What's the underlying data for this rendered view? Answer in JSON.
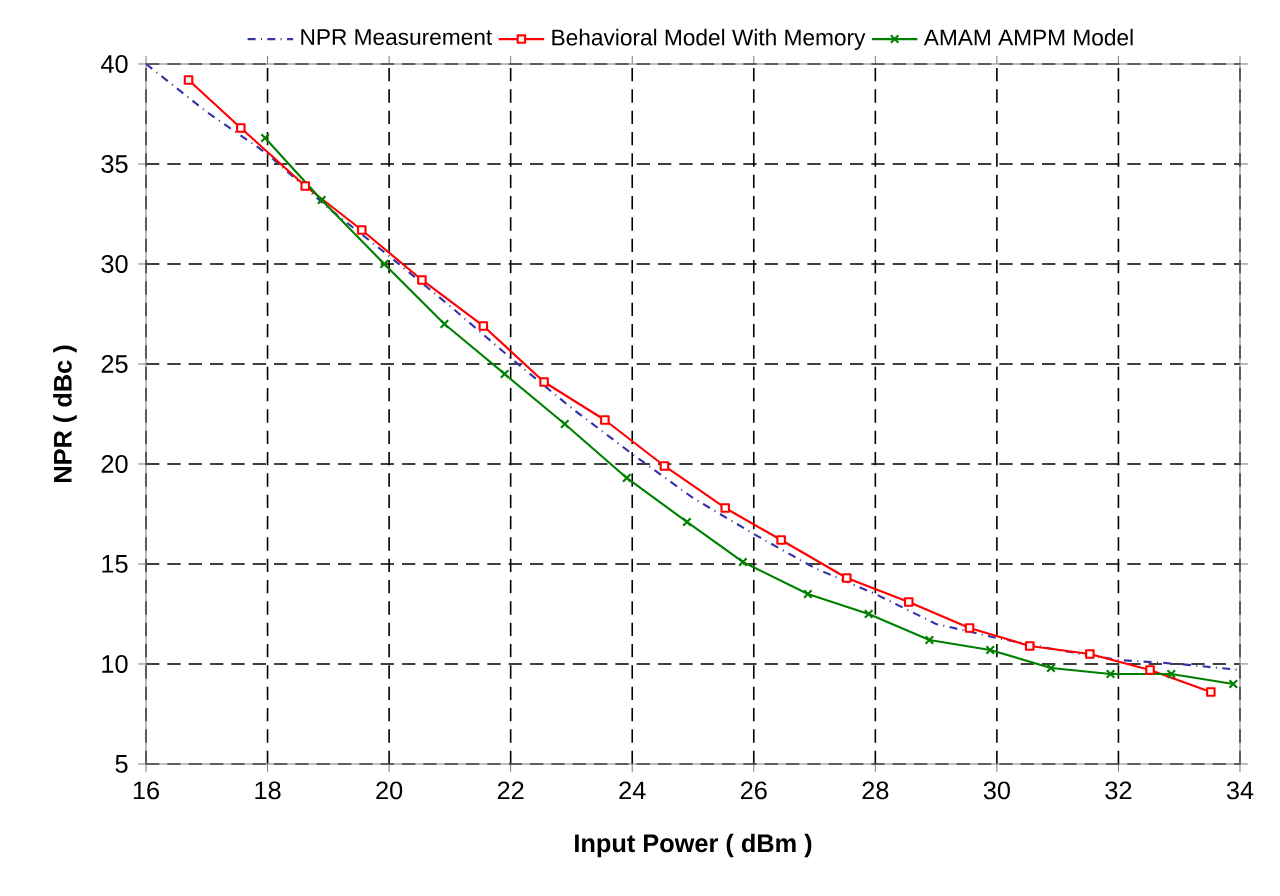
{
  "chart_data": {
    "type": "line",
    "xlabel": "Input Power ( dBm )",
    "ylabel": "NPR  ( dBc )",
    "xlim": [
      16,
      34
    ],
    "xticks": [
      16,
      18,
      20,
      22,
      24,
      26,
      28,
      30,
      32,
      34
    ],
    "ylim": [
      5,
      40
    ],
    "yticks": [
      5,
      10,
      15,
      20,
      25,
      30,
      35,
      40
    ],
    "grid": true,
    "legend": "top",
    "series": [
      {
        "name": "NPR Measurement",
        "color": "#3333aa",
        "line_style": "dashdot",
        "marker": "none",
        "x": [
          16,
          17,
          18,
          19,
          20,
          21,
          22,
          23,
          24,
          25,
          26,
          27,
          28,
          29,
          30,
          31,
          32,
          33,
          34
        ],
        "values": [
          40,
          37.6,
          35.5,
          32.8,
          30.4,
          27.9,
          25.3,
          22.8,
          20.5,
          18.3,
          16.5,
          14.8,
          13.5,
          12,
          11.3,
          10.7,
          10.2,
          10,
          9.7
        ]
      },
      {
        "name": "Behavioral Model With Memory",
        "color": "#ff0000",
        "line_style": "solid",
        "marker": "square",
        "x": [
          16.7,
          17.56,
          18.62,
          19.55,
          20.54,
          21.55,
          22.55,
          23.55,
          24.53,
          25.53,
          26.45,
          27.53,
          28.55,
          29.55,
          30.54,
          31.53,
          32.52,
          33.52
        ],
        "values": [
          39.2,
          36.8,
          33.9,
          31.7,
          29.2,
          26.9,
          24.1,
          22.2,
          19.9,
          17.8,
          16.2,
          14.3,
          13.1,
          11.8,
          10.9,
          10.5,
          9.7,
          8.6
        ]
      },
      {
        "name": "AMAM AMPM Model",
        "color": "#008000",
        "line_style": "solid",
        "marker": "cross",
        "x": [
          17.96,
          18.89,
          19.92,
          20.91,
          21.9,
          22.89,
          23.91,
          24.9,
          25.82,
          26.89,
          27.89,
          28.89,
          29.89,
          30.89,
          31.87,
          32.87,
          33.89
        ],
        "values": [
          36.3,
          33.2,
          30,
          27,
          24.5,
          22,
          19.3,
          17.1,
          15.1,
          13.5,
          12.5,
          11.2,
          10.7,
          9.8,
          9.5,
          9.5,
          9
        ]
      }
    ]
  }
}
